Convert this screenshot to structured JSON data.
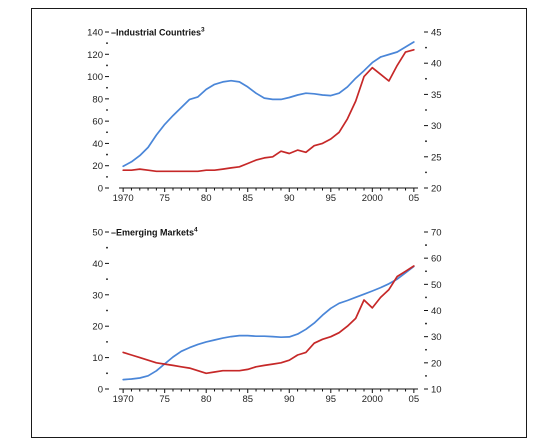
{
  "chart_data": [
    {
      "type": "line",
      "title": "Industrial Countries",
      "title_superscript": "3",
      "x_tick_labels": [
        "1970",
        "75",
        "80",
        "85",
        "90",
        "95",
        "2000",
        "05"
      ],
      "left_axis": {
        "ylim": [
          0,
          140
        ],
        "tick_labels": [
          "0",
          "20",
          "40",
          "60",
          "80",
          "100",
          "120",
          "140"
        ]
      },
      "right_axis": {
        "ylim": [
          20,
          45
        ],
        "tick_labels": [
          "20",
          "25",
          "30",
          "35",
          "40",
          "45"
        ]
      },
      "series": [
        {
          "axis": "right",
          "color": "#4a86d8",
          "x": [
            1970,
            1971,
            1972,
            1973,
            1974,
            1975,
            1976,
            1977,
            1978,
            1979,
            1980,
            1981,
            1982,
            1983,
            1984,
            1985,
            1986,
            1987,
            1988,
            1989,
            1990,
            1991,
            1992,
            1993,
            1994,
            1995,
            1996,
            1997,
            1998,
            1999,
            2000,
            2001,
            2002,
            2003,
            2004,
            2005
          ],
          "values": [
            23.5,
            24.2,
            25.2,
            26.5,
            28.5,
            30.2,
            31.6,
            32.9,
            34.2,
            34.6,
            35.8,
            36.6,
            37,
            37.2,
            37,
            36.2,
            35.2,
            34.4,
            34.2,
            34.2,
            34.5,
            34.9,
            35.2,
            35.1,
            34.9,
            34.8,
            35.2,
            36.2,
            37.6,
            38.8,
            40.1,
            41,
            41.4,
            41.8,
            42.6,
            43.4
          ]
        },
        {
          "axis": "left",
          "color": "#c62828",
          "x": [
            1970,
            1971,
            1972,
            1973,
            1974,
            1975,
            1976,
            1977,
            1978,
            1979,
            1980,
            1981,
            1982,
            1983,
            1984,
            1985,
            1986,
            1987,
            1988,
            1989,
            1990,
            1991,
            1992,
            1993,
            1994,
            1995,
            1996,
            1997,
            1998,
            1999,
            2000,
            2001,
            2002,
            2003,
            2004,
            2005
          ],
          "values": [
            16,
            16,
            17,
            16,
            15,
            15,
            15,
            15,
            15,
            15,
            16,
            16,
            17,
            18,
            19,
            22,
            25,
            27,
            28,
            33,
            31,
            34,
            32,
            38,
            40,
            44,
            50,
            62,
            78,
            100,
            108,
            102,
            96,
            110,
            122,
            124
          ]
        }
      ]
    },
    {
      "type": "line",
      "title": "Emerging Markets",
      "title_superscript": "4",
      "x_tick_labels": [
        "1970",
        "75",
        "80",
        "85",
        "90",
        "95",
        "2000",
        "05"
      ],
      "left_axis": {
        "ylim": [
          0,
          50
        ],
        "tick_labels": [
          "0",
          "10",
          "20",
          "30",
          "40",
          "50"
        ]
      },
      "right_axis": {
        "ylim": [
          10,
          70
        ],
        "tick_labels": [
          "10",
          "20",
          "30",
          "40",
          "50",
          "60",
          "70"
        ]
      },
      "series": [
        {
          "axis": "left",
          "color": "#4a86d8",
          "x": [
            1970,
            1971,
            1972,
            1973,
            1974,
            1975,
            1976,
            1977,
            1978,
            1979,
            1980,
            1981,
            1982,
            1983,
            1984,
            1985,
            1986,
            1987,
            1988,
            1989,
            1990,
            1991,
            1992,
            1993,
            1994,
            1995,
            1996,
            1997,
            1998,
            1999,
            2000,
            2001,
            2002,
            2003,
            2004,
            2005
          ],
          "values": [
            3,
            3.2,
            3.5,
            4.2,
            5.8,
            8,
            10.2,
            12,
            13.2,
            14.2,
            15,
            15.6,
            16.2,
            16.7,
            17,
            17,
            16.8,
            16.8,
            16.7,
            16.5,
            16.6,
            17.5,
            19,
            21,
            23.5,
            25.7,
            27.3,
            28.2,
            29.2,
            30.2,
            31.2,
            32.3,
            33.5,
            35,
            37,
            39
          ]
        },
        {
          "axis": "right",
          "color": "#c62828",
          "x": [
            1970,
            1971,
            1972,
            1973,
            1974,
            1975,
            1976,
            1977,
            1978,
            1979,
            1980,
            1981,
            1982,
            1983,
            1984,
            1985,
            1986,
            1987,
            1988,
            1989,
            1990,
            1991,
            1992,
            1993,
            1994,
            1995,
            1996,
            1997,
            1998,
            1999,
            2000,
            2001,
            2002,
            2003,
            2004,
            2005
          ],
          "values": [
            24,
            23,
            22,
            21,
            20,
            19.5,
            19,
            18.5,
            18,
            17,
            16,
            16.5,
            17,
            17,
            17,
            17.5,
            18.5,
            19,
            19.5,
            20,
            21,
            23,
            24,
            27.5,
            29,
            30,
            31.5,
            34,
            37,
            44,
            41,
            45,
            48,
            53,
            55,
            57
          ]
        }
      ]
    }
  ]
}
